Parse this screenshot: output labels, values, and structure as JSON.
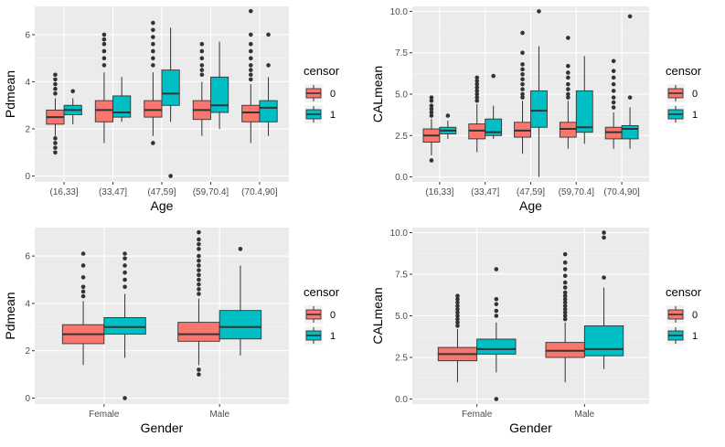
{
  "colors": {
    "censor_0": "#F8766D",
    "censor_1": "#00BFC4",
    "panel": "#EBEBEB",
    "grid_major": "#FFFFFF",
    "grid_minor": "#F5F5F5",
    "outline": "#333333"
  },
  "chart_data": [
    {
      "type": "boxplot",
      "xlabel": "Age",
      "ylabel": "Pdmean",
      "categories": [
        "(16,33]",
        "(33,47]",
        "(47,59]",
        "(59,70.4]",
        "(70.4,90]"
      ],
      "ylim": [
        -0.25,
        7.2
      ],
      "yticks": [
        0,
        2,
        4,
        6
      ],
      "ytick_labels": [
        "0",
        "2",
        "4",
        "6"
      ],
      "legend": {
        "title": "censor",
        "entries": [
          "0",
          "1"
        ],
        "position": "right"
      },
      "series": [
        {
          "name": "0",
          "boxes": [
            {
              "q1": 2.2,
              "median": 2.5,
              "q3": 2.8,
              "whisker_low": 1.7,
              "whisker_high": 3.3,
              "outliers": [
                1.0,
                1.2,
                1.4,
                1.6,
                3.5,
                3.7,
                3.9,
                4.1,
                4.3
              ]
            },
            {
              "q1": 2.3,
              "median": 2.8,
              "q3": 3.2,
              "whisker_low": 1.4,
              "whisker_high": 4.4,
              "outliers": [
                4.7,
                5.0,
                5.3,
                5.6,
                5.8,
                6.0
              ]
            },
            {
              "q1": 2.5,
              "median": 2.8,
              "q3": 3.2,
              "whisker_low": 1.7,
              "whisker_high": 4.4,
              "outliers": [
                1.4,
                4.7,
                5.0,
                5.3,
                5.6,
                5.9,
                6.2,
                6.5
              ]
            },
            {
              "q1": 2.4,
              "median": 2.8,
              "q3": 3.2,
              "whisker_low": 1.7,
              "whisker_high": 4.0,
              "outliers": [
                4.3,
                4.5,
                4.7,
                5.0,
                5.3,
                5.6
              ]
            },
            {
              "q1": 2.3,
              "median": 2.7,
              "q3": 3.0,
              "whisker_low": 1.4,
              "whisker_high": 3.9,
              "outliers": [
                4.1,
                4.3,
                4.5,
                4.7,
                5.0,
                5.3,
                5.6,
                6.0,
                7.0
              ]
            }
          ]
        },
        {
          "name": "1",
          "boxes": [
            {
              "q1": 2.6,
              "median": 2.8,
              "q3": 3.0,
              "whisker_low": 2.2,
              "whisker_high": 3.3,
              "outliers": [
                3.6
              ]
            },
            {
              "q1": 2.5,
              "median": 2.7,
              "q3": 3.4,
              "whisker_low": 2.3,
              "whisker_high": 4.2,
              "outliers": []
            },
            {
              "q1": 3.0,
              "median": 3.5,
              "q3": 4.5,
              "whisker_low": 2.3,
              "whisker_high": 6.3,
              "outliers": [
                0.0
              ]
            },
            {
              "q1": 2.7,
              "median": 3.0,
              "q3": 4.2,
              "whisker_low": 2.0,
              "whisker_high": 5.7,
              "outliers": []
            },
            {
              "q1": 2.3,
              "median": 2.9,
              "q3": 3.2,
              "whisker_low": 1.7,
              "whisker_high": 4.2,
              "outliers": [
                4.7,
                6.0
              ]
            }
          ]
        }
      ]
    },
    {
      "type": "boxplot",
      "xlabel": "Age",
      "ylabel": "CALmean",
      "categories": [
        "(16,33]",
        "(33,47]",
        "(47,59]",
        "(59,70.4]",
        "(70.4,90]"
      ],
      "ylim": [
        -0.3,
        10.3
      ],
      "yticks": [
        0,
        2.5,
        5,
        7.5,
        10
      ],
      "ytick_labels": [
        "0.0",
        "2.5",
        "5.0",
        "7.5",
        "10.0"
      ],
      "legend": {
        "title": "censor",
        "entries": [
          "0",
          "1"
        ],
        "position": "right"
      },
      "series": [
        {
          "name": "0",
          "boxes": [
            {
              "q1": 2.1,
              "median": 2.5,
              "q3": 2.9,
              "whisker_low": 1.3,
              "whisker_high": 3.5,
              "outliers": [
                1.0,
                3.7,
                3.9,
                4.1,
                4.3,
                4.6,
                4.8
              ]
            },
            {
              "q1": 2.3,
              "median": 2.8,
              "q3": 3.2,
              "whisker_low": 1.5,
              "whisker_high": 4.4,
              "outliers": [
                4.6,
                4.8,
                5.0,
                5.2,
                5.4,
                5.6,
                5.8,
                6.0
              ]
            },
            {
              "q1": 2.4,
              "median": 2.8,
              "q3": 3.3,
              "whisker_low": 1.4,
              "whisker_high": 4.6,
              "outliers": [
                4.8,
                5.0,
                5.3,
                5.6,
                5.9,
                6.2,
                6.5,
                6.8,
                7.5,
                8.7
              ]
            },
            {
              "q1": 2.4,
              "median": 2.9,
              "q3": 3.3,
              "whisker_low": 1.7,
              "whisker_high": 4.6,
              "outliers": [
                4.8,
                5.0,
                5.3,
                5.6,
                6.0,
                6.3,
                6.7,
                8.4
              ]
            },
            {
              "q1": 2.3,
              "median": 2.7,
              "q3": 3.0,
              "whisker_low": 1.7,
              "whisker_high": 3.9,
              "outliers": [
                4.2,
                4.5,
                4.8,
                5.2,
                5.6,
                6.0,
                6.4,
                7.0
              ]
            }
          ]
        },
        {
          "name": "1",
          "boxes": [
            {
              "q1": 2.6,
              "median": 2.8,
              "q3": 3.0,
              "whisker_low": 2.3,
              "whisker_high": 3.4,
              "outliers": [
                3.7
              ]
            },
            {
              "q1": 2.5,
              "median": 2.7,
              "q3": 3.5,
              "whisker_low": 2.3,
              "whisker_high": 4.3,
              "outliers": [
                6.1
              ]
            },
            {
              "q1": 3.0,
              "median": 4.0,
              "q3": 5.2,
              "whisker_low": 0.0,
              "whisker_high": 7.9,
              "outliers": [
                10.0
              ]
            },
            {
              "q1": 2.7,
              "median": 3.0,
              "q3": 5.2,
              "whisker_low": 2.0,
              "whisker_high": 7.3,
              "outliers": []
            },
            {
              "q1": 2.3,
              "median": 2.9,
              "q3": 3.1,
              "whisker_low": 1.7,
              "whisker_high": 4.2,
              "outliers": [
                4.8,
                9.7
              ]
            }
          ]
        }
      ]
    },
    {
      "type": "boxplot",
      "xlabel": "Gender",
      "ylabel": "Pdmean",
      "categories": [
        "Female",
        "Male"
      ],
      "ylim": [
        -0.25,
        7.2
      ],
      "yticks": [
        0,
        2,
        4,
        6
      ],
      "ytick_labels": [
        "0",
        "2",
        "4",
        "6"
      ],
      "legend": {
        "title": "censor",
        "entries": [
          "0",
          "1"
        ],
        "position": "right"
      },
      "series": [
        {
          "name": "0",
          "boxes": [
            {
              "q1": 2.3,
              "median": 2.7,
              "q3": 3.1,
              "whisker_low": 1.4,
              "whisker_high": 4.1,
              "outliers": [
                4.3,
                4.5,
                4.7,
                5.1,
                5.6,
                6.1
              ]
            },
            {
              "q1": 2.4,
              "median": 2.7,
              "q3": 3.2,
              "whisker_low": 1.4,
              "whisker_high": 4.2,
              "outliers": [
                1.0,
                1.2,
                4.4,
                4.6,
                4.8,
                5.0,
                5.2,
                5.4,
                5.6,
                5.8,
                6.0,
                6.3,
                6.5,
                6.7,
                7.0
              ]
            }
          ]
        },
        {
          "name": "1",
          "boxes": [
            {
              "q1": 2.7,
              "median": 3.0,
              "q3": 3.4,
              "whisker_low": 1.7,
              "whisker_high": 4.4,
              "outliers": [
                0.0,
                4.7,
                5.0,
                5.3,
                5.6,
                5.9,
                6.1
              ]
            },
            {
              "q1": 2.5,
              "median": 3.0,
              "q3": 3.7,
              "whisker_low": 1.8,
              "whisker_high": 5.6,
              "outliers": [
                6.3
              ]
            }
          ]
        }
      ]
    },
    {
      "type": "boxplot",
      "xlabel": "Gender",
      "ylabel": "CALmean",
      "categories": [
        "Female",
        "Male"
      ],
      "ylim": [
        -0.3,
        10.3
      ],
      "yticks": [
        0,
        2.5,
        5,
        7.5,
        10
      ],
      "ytick_labels": [
        "0.0",
        "2.5",
        "5.0",
        "7.5",
        "10.0"
      ],
      "legend": {
        "title": "censor",
        "entries": [
          "0",
          "1"
        ],
        "position": "right"
      },
      "series": [
        {
          "name": "0",
          "boxes": [
            {
              "q1": 2.3,
              "median": 2.7,
              "q3": 3.1,
              "whisker_low": 1.0,
              "whisker_high": 4.2,
              "outliers": [
                4.4,
                4.6,
                4.8,
                5.0,
                5.2,
                5.4,
                5.6,
                5.8,
                6.0,
                6.2
              ]
            },
            {
              "q1": 2.5,
              "median": 2.9,
              "q3": 3.4,
              "whisker_low": 1.0,
              "whisker_high": 4.6,
              "outliers": [
                4.8,
                5.0,
                5.2,
                5.4,
                5.6,
                5.8,
                6.0,
                6.2,
                6.4,
                6.7,
                7.0,
                7.4,
                7.8,
                8.2,
                8.7
              ]
            }
          ]
        },
        {
          "name": "1",
          "boxes": [
            {
              "q1": 2.7,
              "median": 3.0,
              "q3": 3.6,
              "whisker_low": 1.6,
              "whisker_high": 4.6,
              "outliers": [
                0.0,
                5.0,
                5.3,
                5.7,
                6.0,
                7.8
              ]
            },
            {
              "q1": 2.6,
              "median": 3.0,
              "q3": 4.4,
              "whisker_low": 1.8,
              "whisker_high": 6.7,
              "outliers": [
                7.3,
                9.7,
                10.0
              ]
            }
          ]
        }
      ]
    }
  ]
}
